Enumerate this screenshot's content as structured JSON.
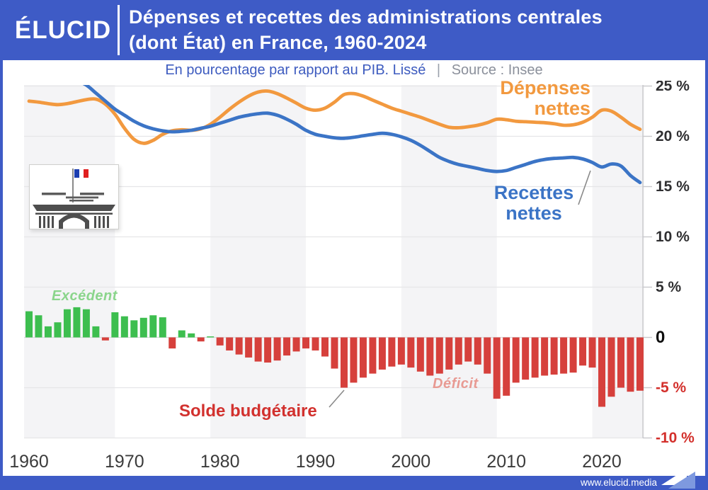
{
  "header": {
    "logo": "ÉLUCID",
    "title_line1": "Dépenses et recettes des administrations centrales",
    "title_line2": "(dont État) en France, 1960-2024"
  },
  "subtitle": {
    "main": "En pourcentage par rapport au PIB. Lissé",
    "separator": "|",
    "source": "Source : Insee"
  },
  "labels": {
    "depenses_line1": "Dépenses",
    "depenses_line2": "nettes",
    "recettes_line1": "Recettes",
    "recettes_line2": "nettes",
    "excedent": "Excédent",
    "deficit": "Déficit",
    "solde": "Solde budgétaire"
  },
  "footer": {
    "url": "www.elucid.media"
  },
  "colors": {
    "accent_blue": "#3E5BC6",
    "line_expenses": "#F2993F",
    "line_revenues": "#3B74C6",
    "bar_surplus": "#3DBE4F",
    "bar_deficit": "#D6403C",
    "label_surplus": "#8BD58C",
    "label_deficit": "#E89A93",
    "label_balance": "#D2312E",
    "tick_negative": "#D3302C",
    "band_gray": "#F4F4F6",
    "grid": "#E6E6E8"
  },
  "chart_data": {
    "type": "line+bar",
    "title": "Dépenses et recettes des administrations centrales (dont État) en France, 1960-2024",
    "subtitle": "En pourcentage par rapport au PIB. Lissé",
    "source": "Insee",
    "unit": "% du PIB",
    "x_start": 1960,
    "x_end": 2024,
    "ylim": [
      -10.2,
      25.2
    ],
    "grid": true,
    "legend_position": "annotations on chart",
    "x_ticks": [
      1960,
      1970,
      1980,
      1990,
      2000,
      2010,
      2020
    ],
    "y_ticks": [
      {
        "value": 25,
        "label": "25 %",
        "style": "pos"
      },
      {
        "value": 20,
        "label": "20 %",
        "style": "pos"
      },
      {
        "value": 15,
        "label": "15 %",
        "style": "pos"
      },
      {
        "value": 10,
        "label": "10 %",
        "style": "pos"
      },
      {
        "value": 5,
        "label": "5 %",
        "style": "pos"
      },
      {
        "value": 0,
        "label": "0",
        "style": "zero"
      },
      {
        "value": -5,
        "label": "-5 %",
        "style": "neg"
      },
      {
        "value": -10,
        "label": "-10 %",
        "style": "neg"
      }
    ],
    "series": [
      {
        "name": "Dépenses nettes",
        "type": "line",
        "color": "#F2993F",
        "values": [
          23.5,
          23.4,
          23.25,
          23.15,
          23.25,
          23.45,
          23.65,
          23.7,
          23.2,
          22.2,
          20.8,
          19.7,
          19.3,
          19.6,
          20.2,
          20.55,
          20.65,
          20.6,
          20.75,
          21.2,
          21.9,
          22.7,
          23.4,
          24.0,
          24.4,
          24.5,
          24.25,
          23.8,
          23.3,
          22.8,
          22.6,
          22.8,
          23.4,
          24.15,
          24.25,
          24.0,
          23.6,
          23.2,
          22.8,
          22.5,
          22.2,
          21.9,
          21.55,
          21.2,
          20.9,
          20.85,
          20.95,
          21.1,
          21.35,
          21.7,
          21.65,
          21.5,
          21.45,
          21.4,
          21.35,
          21.25,
          21.1,
          21.15,
          21.4,
          21.9,
          22.6,
          22.5,
          21.9,
          21.2,
          20.7
        ]
      },
      {
        "name": "Recettes nettes",
        "type": "line",
        "color": "#3B74C6",
        "values": [
          26.0,
          25.9,
          25.85,
          25.8,
          25.7,
          25.5,
          25.1,
          24.3,
          23.5,
          22.7,
          22.1,
          21.5,
          21.05,
          20.75,
          20.55,
          20.45,
          20.5,
          20.6,
          20.8,
          21.0,
          21.3,
          21.6,
          21.9,
          22.1,
          22.25,
          22.3,
          22.1,
          21.7,
          21.2,
          20.6,
          20.2,
          20.0,
          19.85,
          19.8,
          19.9,
          20.05,
          20.2,
          20.3,
          20.2,
          19.95,
          19.6,
          19.1,
          18.5,
          17.9,
          17.5,
          17.2,
          17.0,
          16.8,
          16.6,
          16.5,
          16.6,
          16.9,
          17.2,
          17.5,
          17.7,
          17.8,
          17.85,
          17.9,
          17.75,
          17.4,
          16.95,
          17.25,
          17.05,
          16.1,
          15.4
        ]
      },
      {
        "name": "Solde budgétaire",
        "type": "bar",
        "color_positive": "#3DBE4F",
        "color_negative": "#D6403C",
        "values": [
          2.6,
          2.2,
          1.1,
          1.5,
          2.8,
          3.0,
          2.8,
          1.1,
          -0.3,
          2.5,
          2.1,
          1.7,
          1.95,
          2.2,
          2.0,
          -1.1,
          0.7,
          0.4,
          -0.4,
          0.1,
          -0.8,
          -1.3,
          -1.7,
          -2.0,
          -2.4,
          -2.5,
          -2.3,
          -1.8,
          -1.4,
          -1.1,
          -1.3,
          -1.9,
          -3.1,
          -5.0,
          -4.5,
          -4.0,
          -3.6,
          -3.2,
          -2.9,
          -2.7,
          -3.0,
          -3.4,
          -3.8,
          -3.6,
          -3.2,
          -2.7,
          -2.4,
          -2.7,
          -3.6,
          -6.1,
          -5.8,
          -4.5,
          -4.2,
          -4.0,
          -3.8,
          -3.7,
          -3.6,
          -3.5,
          -2.8,
          -3.0,
          -6.9,
          -5.9,
          -5.0,
          -5.4,
          -5.3
        ]
      }
    ],
    "annotations": [
      {
        "text": "Dépenses nettes",
        "color": "#F2993F"
      },
      {
        "text": "Recettes nettes",
        "color": "#3B74C6"
      },
      {
        "text": "Excédent",
        "color": "#8BD58C"
      },
      {
        "text": "Déficit",
        "color": "#E89A93"
      },
      {
        "text": "Solde budgétaire",
        "color": "#D2312E"
      }
    ]
  }
}
